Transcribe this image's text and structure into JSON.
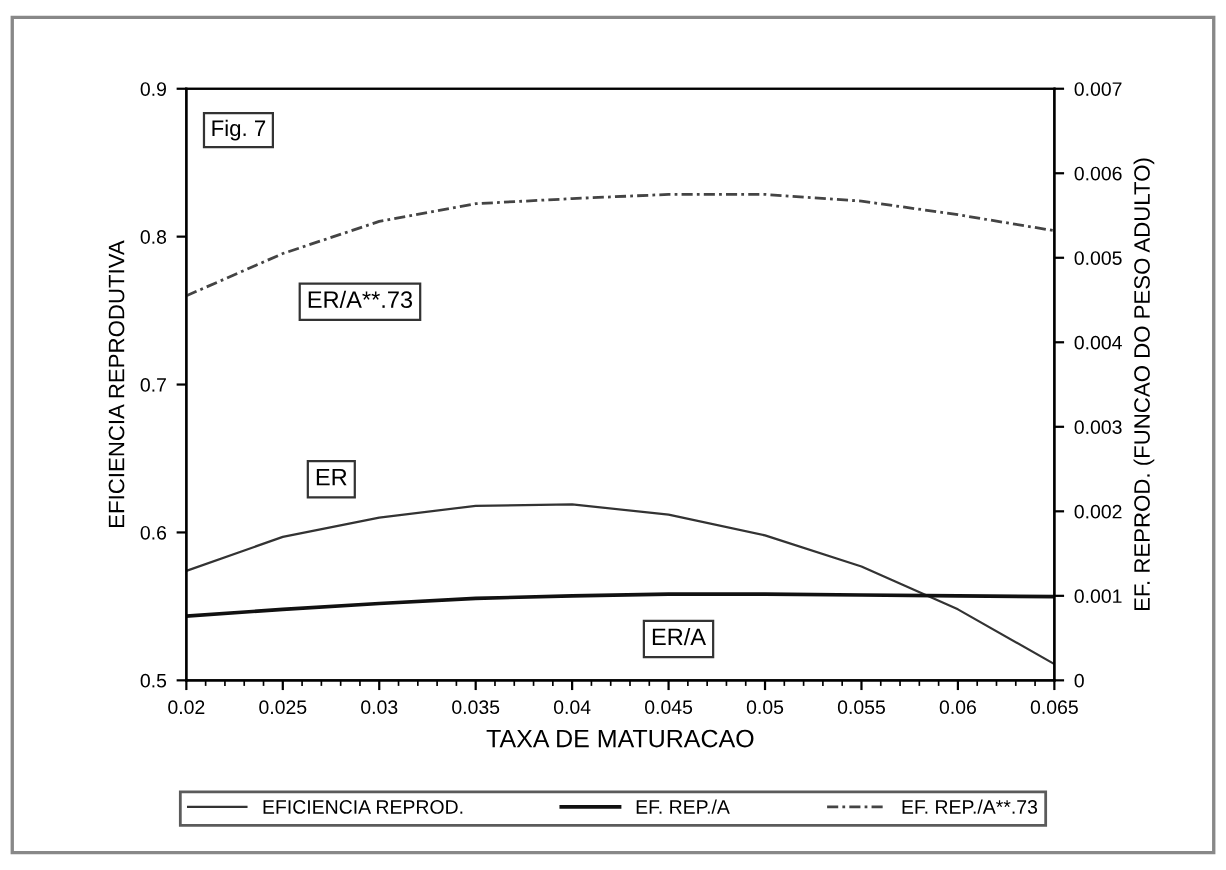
{
  "chart_data": {
    "type": "line",
    "xlabel": "TAXA DE MATURACAO",
    "ylabel": "EFICIENCIA REPRODUTIVA",
    "y2label": "EF. REPROD. (FUNCAO DO PESO ADULTO)",
    "x": [
      0.02,
      0.025,
      0.03,
      0.035,
      0.04,
      0.045,
      0.05,
      0.055,
      0.06,
      0.065
    ],
    "series": [
      {
        "name": "EFICIENCIA REPROD.",
        "color": "#333333",
        "line_style": "solid",
        "values": [
          0.574,
          0.597,
          0.61,
          0.618,
          0.619,
          0.612,
          0.598,
          0.577,
          0.548,
          0.511
        ]
      },
      {
        "name": "EF. REP./A",
        "color": "#111111",
        "line_style": "solid",
        "axis": "y2",
        "values": [
          0.00076,
          0.00084,
          0.00091,
          0.00097,
          0.001,
          0.00102,
          0.00102,
          0.00101,
          0.001,
          0.00099
        ]
      },
      {
        "name": "EF. REP./A**.73",
        "color": "#444444",
        "line_style": "dashed",
        "axis": "y2",
        "values": [
          0.00455,
          0.00505,
          0.00543,
          0.00564,
          0.0057,
          0.00575,
          0.00575,
          0.00567,
          0.00551,
          0.00532
        ]
      }
    ],
    "xlim": [
      0.02,
      0.065
    ],
    "xticks": [
      0.02,
      0.025,
      0.03,
      0.035,
      0.04,
      0.045,
      0.05,
      0.055,
      0.06,
      0.065
    ],
    "ylim": [
      0.5,
      0.9
    ],
    "yticks": [
      0.5,
      0.6,
      0.7,
      0.8,
      0.9
    ],
    "y2lim": [
      0,
      0.007
    ],
    "y2ticks": [
      0,
      0.001,
      0.002,
      0.003,
      0.004,
      0.005,
      0.006,
      0.007
    ],
    "grid": false,
    "legend": "bottom",
    "marker": "none",
    "annotations": [
      "Fig. 7",
      "ER/A**.73",
      "ER",
      "ER/A"
    ]
  }
}
